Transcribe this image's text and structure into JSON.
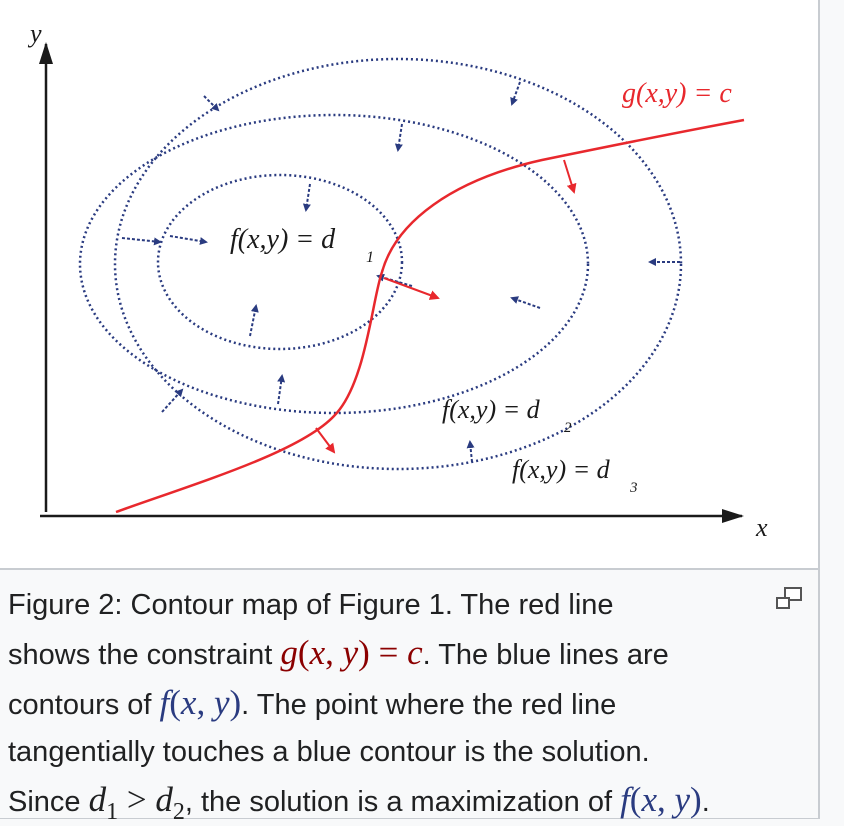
{
  "diagram": {
    "axis_x_label": "x",
    "axis_y_label": "y",
    "constraint_label": "g(x,y) = c",
    "contour_labels": [
      {
        "text": "f(x,y) = d",
        "sub": "1"
      },
      {
        "text": "f(x,y) = d",
        "sub": "2"
      },
      {
        "text": "f(x,y) = d",
        "sub": "3"
      }
    ],
    "colors": {
      "constraint": "#e8282d",
      "contours": "#2a3b80",
      "axes": "#1a1a1a"
    }
  },
  "caption": {
    "line1": "Figure 2: Contour map of Figure 1. The red line",
    "line2_pre": "shows the constraint ",
    "line2_math": "g(x, y) = c",
    "line2_post": ". The blue lines are",
    "line3_pre": "contours of ",
    "line3_math": "f(x, y)",
    "line3_post": ". The point where the red line",
    "line4": "tangentially touches a blue contour is the solution.",
    "line5_pre": "Since ",
    "line5_d1": "d",
    "line5_sub1": "1",
    "line5_op": " > ",
    "line5_d2": "d",
    "line5_sub2": "2",
    "line5_mid": ", the solution is a maximization of ",
    "line5_math": "f(x, y)",
    "line5_post": "."
  },
  "icons": {
    "magnify": "magnify-icon"
  }
}
